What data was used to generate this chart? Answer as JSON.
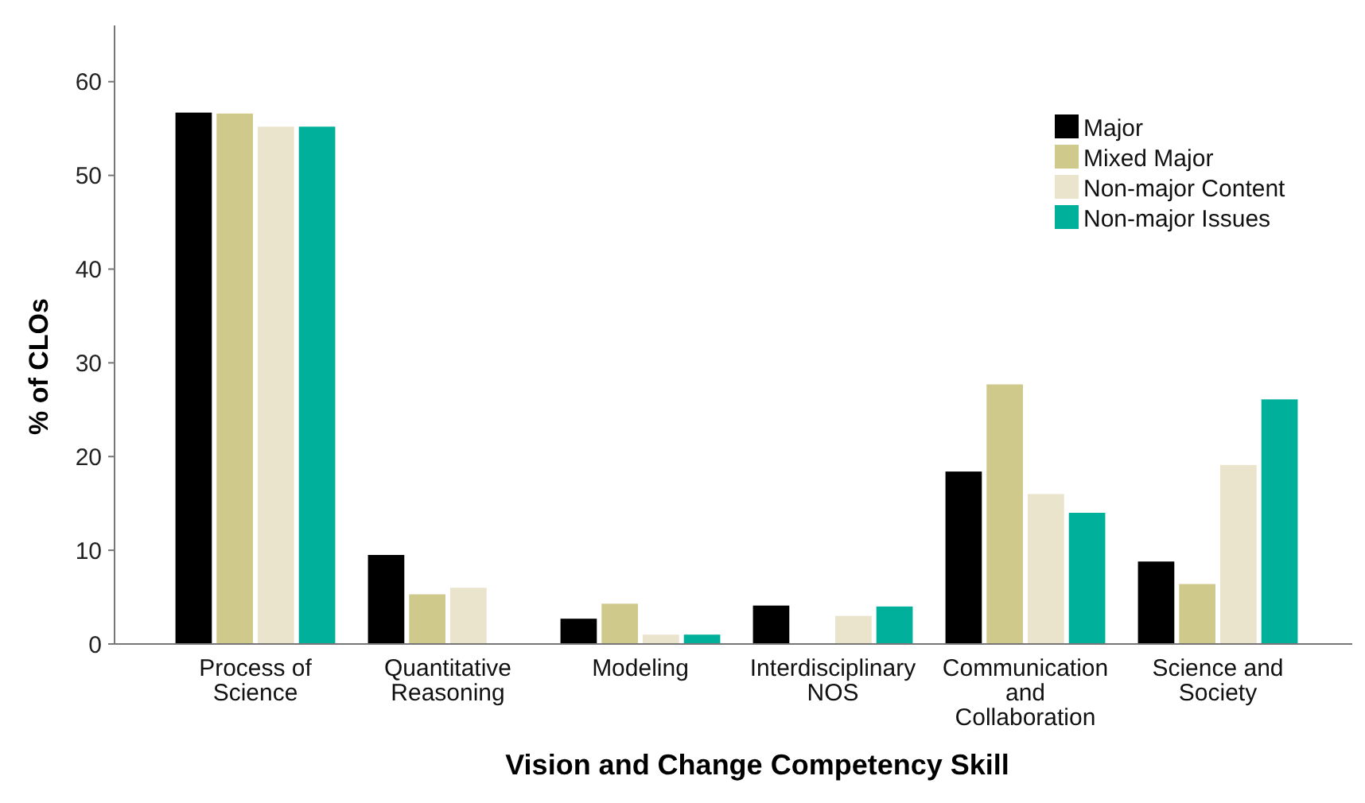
{
  "chart_data": {
    "type": "bar",
    "xlabel": "Vision and Change Competency Skill",
    "ylabel": "% of CLOs",
    "categories": [
      "Process of Science",
      "Quantitative Reasoning",
      "Modeling",
      "Interdisciplinary NOS",
      "Communication and Collaboration",
      "Science and Society"
    ],
    "series": [
      {
        "name": "Major",
        "color": "#000000",
        "values": [
          56.7,
          9.5,
          2.7,
          4.1,
          18.4,
          8.8
        ]
      },
      {
        "name": "Mixed Major",
        "color": "#cfc98c",
        "values": [
          56.6,
          5.3,
          4.3,
          0,
          27.7,
          6.4
        ]
      },
      {
        "name": "Non-major Content",
        "color": "#ebe4cc",
        "values": [
          55.2,
          6.0,
          1.0,
          3.0,
          16.0,
          19.1
        ]
      },
      {
        "name": "Non-major Issues",
        "color": "#00b09b",
        "values": [
          55.2,
          0,
          1.0,
          4.0,
          14.0,
          26.1
        ]
      }
    ],
    "ylim": [
      0,
      66
    ],
    "yticks": [
      0,
      10,
      20,
      30,
      40,
      50,
      60
    ],
    "grid": false,
    "legend": "top right"
  }
}
